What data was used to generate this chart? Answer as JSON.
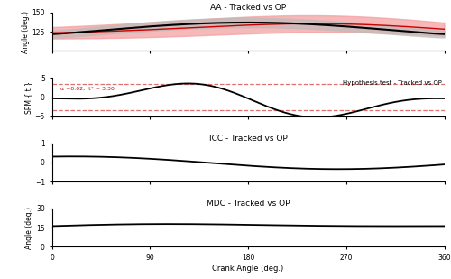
{
  "title_aa": "AA - Tracked vs OP",
  "title_spm": "Hypothesis test - Tracked vs OP",
  "title_icc": "ICC - Tracked vs OP",
  "title_mdc": "MDC - Tracked vs OP",
  "xlabel": "Crank Angle (deg.)",
  "ylabel_aa": "Angle (deg.)",
  "ylabel_spm": "SPM { t }",
  "ylabel_mdc": "Angle (deg.)",
  "x_ticks": [
    0,
    90,
    180,
    270,
    360
  ],
  "xlim": [
    0,
    360
  ],
  "aa_ylim": [
    100,
    150
  ],
  "aa_yticks": [
    125,
    150
  ],
  "spm_ylim": [
    -5,
    5
  ],
  "spm_yticks": [
    -5,
    0,
    5
  ],
  "icc_ylim": [
    -1,
    1
  ],
  "icc_yticks": [
    -1,
    0,
    1
  ],
  "mdc_ylim": [
    0,
    30
  ],
  "mdc_yticks": [
    0,
    15,
    30
  ],
  "spm_alpha_label": "α =0.02,  t* = 3.30",
  "spm_tcrit": 3.3,
  "color_tracked": "#000000",
  "color_op": "#cc0000",
  "color_fill_tracked": "#bbbbbb",
  "color_fill_op": "#f4a0a0",
  "color_crit": "#e07070",
  "background_color": "#ffffff"
}
